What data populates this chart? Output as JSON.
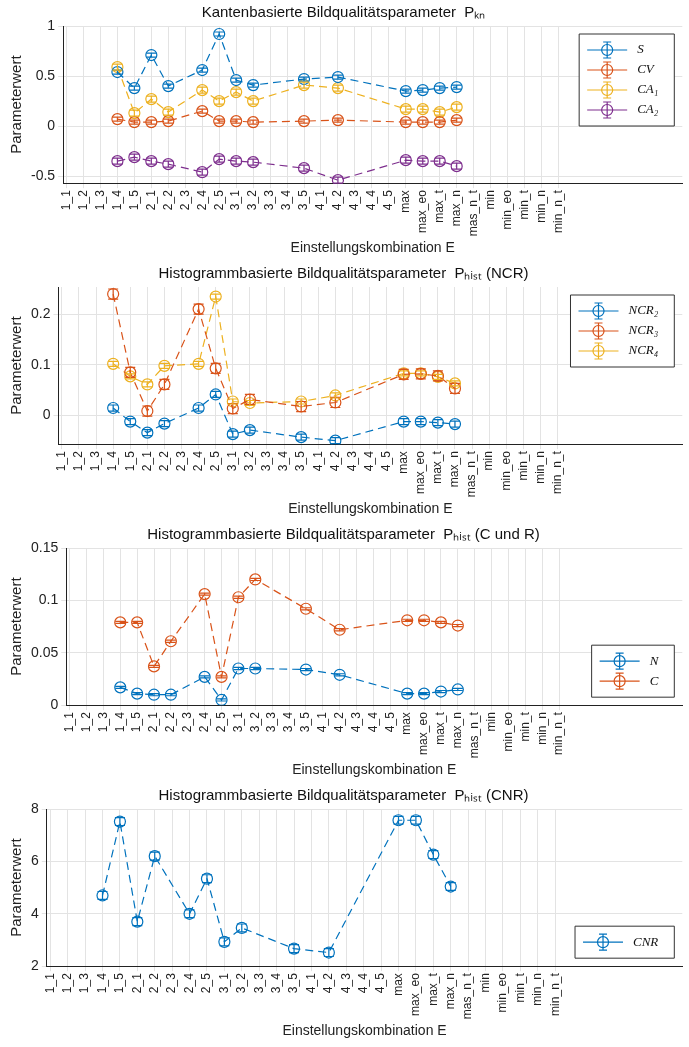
{
  "chart_data": [
    {
      "type": "line",
      "title": "Kantenbasierte Bildqualitätsparameter  Pₖₙ",
      "xlabel": "Einstellungskombination E",
      "ylabel": "Parameterwert",
      "categories": [
        "1_1",
        "1_2",
        "1_3",
        "1_4",
        "1_5",
        "2_1",
        "2_2",
        "2_3",
        "2_4",
        "2_5",
        "3_1",
        "3_2",
        "3_3",
        "3_4",
        "3_5",
        "4_1",
        "4_2",
        "4_3",
        "4_4",
        "4_5",
        "max",
        "max_eo",
        "max_t",
        "max_n",
        "mas_n_t",
        "min",
        "min_eo",
        "min_t",
        "min_n",
        "min_n_t"
      ],
      "series": [
        {
          "name": "S",
          "color": "#0072bd",
          "values": [
            null,
            null,
            null,
            0.54,
            0.38,
            0.71,
            0.4,
            null,
            0.56,
            0.92,
            0.46,
            0.41,
            null,
            null,
            0.47,
            null,
            0.49,
            null,
            null,
            null,
            0.35,
            0.36,
            0.38,
            0.39,
            null,
            null,
            null,
            null,
            null,
            null
          ],
          "errors": [
            null,
            null,
            null,
            0.02,
            0.02,
            0.02,
            0.02,
            null,
            0.02,
            0.02,
            0.02,
            0.02,
            null,
            null,
            0.02,
            null,
            0.02,
            null,
            null,
            null,
            0.02,
            0.02,
            0.02,
            0.02,
            null,
            null,
            null,
            null,
            null,
            null
          ]
        },
        {
          "name": "CV",
          "color": "#d95319",
          "values": [
            null,
            null,
            null,
            0.07,
            0.04,
            0.04,
            0.05,
            null,
            0.15,
            0.05,
            0.05,
            0.04,
            null,
            null,
            0.05,
            null,
            0.06,
            null,
            null,
            null,
            0.04,
            0.04,
            0.04,
            0.06,
            null,
            null,
            null,
            null,
            null,
            null
          ],
          "errors": [
            null,
            null,
            null,
            0.02,
            0.02,
            0.02,
            0.02,
            null,
            0.02,
            0.02,
            0.02,
            0.02,
            null,
            null,
            0.02,
            null,
            0.02,
            null,
            null,
            null,
            0.02,
            0.02,
            0.02,
            0.02,
            null,
            null,
            null,
            null,
            null,
            null
          ]
        },
        {
          "name": "CA₁",
          "color": "#edb120",
          "values": [
            null,
            null,
            null,
            0.59,
            0.13,
            0.27,
            0.14,
            null,
            0.36,
            0.25,
            0.34,
            0.25,
            null,
            null,
            0.41,
            null,
            0.38,
            null,
            null,
            null,
            0.17,
            0.17,
            0.14,
            0.19,
            null,
            null,
            null,
            null,
            null,
            null
          ],
          "errors": [
            null,
            null,
            null,
            0.03,
            0.03,
            0.03,
            0.03,
            null,
            0.03,
            0.03,
            0.03,
            0.03,
            null,
            null,
            0.03,
            null,
            0.03,
            null,
            null,
            null,
            0.03,
            0.03,
            0.03,
            0.03,
            null,
            null,
            null,
            null,
            null,
            null
          ]
        },
        {
          "name": "CA₂",
          "color": "#7e2f8e",
          "values": [
            null,
            null,
            null,
            -0.35,
            -0.31,
            -0.35,
            -0.38,
            null,
            -0.46,
            -0.33,
            -0.35,
            -0.36,
            null,
            null,
            -0.42,
            null,
            -0.54,
            null,
            null,
            null,
            -0.34,
            -0.35,
            -0.35,
            -0.4,
            null,
            null,
            null,
            null,
            null,
            null
          ],
          "errors": [
            null,
            null,
            null,
            0.03,
            0.03,
            0.03,
            0.03,
            null,
            0.03,
            0.03,
            0.03,
            0.03,
            null,
            null,
            0.03,
            null,
            0.03,
            null,
            null,
            null,
            0.03,
            0.03,
            0.03,
            0.03,
            null,
            null,
            null,
            null,
            null,
            null
          ]
        }
      ],
      "ylim": [
        -0.57,
        1
      ],
      "yticks": [
        -0.5,
        0,
        0.5,
        1
      ],
      "grid": true,
      "legend": "top right",
      "marker": "circle",
      "line_style": "dashed"
    },
    {
      "type": "line",
      "title": "Histogrammbasierte Bildqualitätsparameter  Pₕᵢₛₜ (NCR)",
      "xlabel": "Einstellungskombination E",
      "ylabel": "Parameterwert",
      "categories": [
        "1_1",
        "1_2",
        "1_3",
        "1_4",
        "1_5",
        "2_1",
        "2_2",
        "2_3",
        "2_4",
        "2_5",
        "3_1",
        "3_2",
        "3_3",
        "3_4",
        "3_5",
        "4_1",
        "4_2",
        "4_3",
        "4_4",
        "4_5",
        "max",
        "max_eo",
        "max_t",
        "max_n",
        "mas_n_t",
        "min",
        "min_eo",
        "min_t",
        "min_n",
        "min_n_t"
      ],
      "series": [
        {
          "name": "NCR₂",
          "color": "#0072bd",
          "values": [
            null,
            null,
            null,
            0.014,
            -0.013,
            -0.035,
            -0.017,
            null,
            0.014,
            0.041,
            -0.038,
            -0.03,
            null,
            null,
            -0.044,
            null,
            -0.051,
            null,
            null,
            null,
            -0.013,
            -0.013,
            -0.015,
            -0.018,
            null,
            null,
            null,
            null,
            null,
            null
          ],
          "errors": [
            null,
            null,
            null,
            0.006,
            0.006,
            0.006,
            0.006,
            null,
            0.006,
            0.006,
            0.006,
            0.006,
            null,
            null,
            0.006,
            null,
            0.006,
            null,
            null,
            null,
            0.006,
            0.006,
            0.006,
            0.006,
            null,
            null,
            null,
            null,
            null,
            null
          ]
        },
        {
          "name": "NCR₃",
          "color": "#d95319",
          "values": [
            null,
            null,
            null,
            0.241,
            0.085,
            0.008,
            0.061,
            null,
            0.211,
            0.093,
            0.013,
            0.031,
            null,
            null,
            0.017,
            null,
            0.025,
            null,
            null,
            null,
            0.081,
            0.082,
            0.078,
            0.053,
            null,
            null,
            null,
            null,
            null,
            null
          ],
          "errors": [
            null,
            null,
            null,
            0.01,
            0.01,
            0.01,
            0.01,
            null,
            0.01,
            0.01,
            0.01,
            0.01,
            null,
            null,
            0.01,
            null,
            0.01,
            null,
            null,
            null,
            0.01,
            0.01,
            0.01,
            0.01,
            null,
            null,
            null,
            null,
            null,
            null
          ]
        },
        {
          "name": "NCR₄",
          "color": "#edb120",
          "values": [
            null,
            null,
            null,
            0.102,
            0.077,
            0.061,
            0.098,
            null,
            0.102,
            0.236,
            0.027,
            0.024,
            null,
            null,
            0.027,
            null,
            0.039,
            null,
            null,
            null,
            0.083,
            0.083,
            0.076,
            0.063,
            null,
            null,
            null,
            null,
            null,
            null
          ],
          "errors": [
            null,
            null,
            null,
            0.005,
            0.005,
            0.005,
            0.005,
            null,
            0.005,
            0.005,
            0.005,
            0.005,
            null,
            null,
            0.005,
            null,
            0.005,
            null,
            null,
            null,
            0.005,
            0.005,
            0.005,
            0.005,
            null,
            null,
            null,
            null,
            null,
            null
          ]
        }
      ],
      "ylim": [
        -0.058,
        0.255
      ],
      "yticks": [
        0,
        0.1,
        0.2
      ],
      "grid": true,
      "legend": "top right",
      "marker": "circle",
      "line_style": "dashed"
    },
    {
      "type": "line",
      "title": "Histogrammbasierte Bildqualitätsparameter  Pₕᵢₛₜ (C und R)",
      "xlabel": "Einstellungskombination E",
      "ylabel": "Parameterwert",
      "categories": [
        "1_1",
        "1_2",
        "1_3",
        "1_4",
        "1_5",
        "2_1",
        "2_2",
        "2_3",
        "2_4",
        "2_5",
        "3_1",
        "3_2",
        "3_3",
        "3_4",
        "3_5",
        "4_1",
        "4_2",
        "4_3",
        "4_4",
        "4_5",
        "max",
        "max_eo",
        "max_t",
        "max_n",
        "mas_n_t",
        "min",
        "min_eo",
        "min_t",
        "min_n",
        "min_n_t"
      ],
      "series": [
        {
          "name": "N",
          "color": "#0072bd",
          "values": [
            null,
            null,
            null,
            0.017,
            0.011,
            0.01,
            0.01,
            null,
            0.027,
            0.005,
            0.035,
            0.035,
            null,
            null,
            0.034,
            null,
            0.029,
            null,
            null,
            null,
            0.011,
            0.011,
            0.013,
            0.015,
            null,
            null,
            null,
            null,
            null,
            null
          ],
          "errors": [
            null,
            null,
            null,
            0.001,
            0.001,
            0.001,
            0.001,
            null,
            0.001,
            0.001,
            0.001,
            0.001,
            null,
            null,
            0.001,
            null,
            0.001,
            null,
            null,
            null,
            0.001,
            0.001,
            0.001,
            0.001,
            null,
            null,
            null,
            null,
            null,
            null
          ]
        },
        {
          "name": "C",
          "color": "#d95319",
          "values": [
            null,
            null,
            null,
            0.079,
            0.079,
            0.037,
            0.061,
            null,
            0.106,
            0.027,
            0.103,
            0.12,
            null,
            null,
            0.092,
            null,
            0.072,
            null,
            null,
            null,
            0.081,
            0.081,
            0.079,
            0.076,
            null,
            null,
            null,
            null,
            null,
            null
          ],
          "errors": [
            null,
            null,
            null,
            0.001,
            0.001,
            0.001,
            0.001,
            null,
            0.001,
            0.001,
            0.001,
            0.001,
            null,
            null,
            0.001,
            null,
            0.001,
            null,
            null,
            null,
            0.001,
            0.001,
            0.001,
            0.001,
            null,
            null,
            null,
            null,
            null,
            null
          ]
        }
      ],
      "ylim": [
        0,
        0.15
      ],
      "yticks": [
        0,
        0.05,
        0.1,
        0.15
      ],
      "grid": true,
      "legend": "bottom right",
      "marker": "circle",
      "line_style": "dashed"
    },
    {
      "type": "line",
      "title": "Histogrammbasierte Bildqualitätsparameter  Pₕᵢₛₜ (CNR)",
      "xlabel": "Einstellungskombination E",
      "ylabel": "Parameterwert",
      "categories": [
        "1_1",
        "1_2",
        "1_3",
        "1_4",
        "1_5",
        "2_1",
        "2_2",
        "2_3",
        "2_4",
        "2_5",
        "3_1",
        "3_2",
        "3_3",
        "3_4",
        "3_5",
        "4_1",
        "4_2",
        "4_3",
        "4_4",
        "4_5",
        "max",
        "max_eo",
        "max_t",
        "max_n",
        "mas_n_t",
        "min",
        "min_eo",
        "min_t",
        "min_n",
        "min_n_t"
      ],
      "series": [
        {
          "name": "CNR",
          "color": "#0072bd",
          "values": [
            null,
            null,
            null,
            4.7,
            7.52,
            3.7,
            6.2,
            null,
            4.0,
            5.34,
            2.93,
            3.46,
            null,
            null,
            2.67,
            null,
            2.52,
            null,
            null,
            null,
            7.57,
            7.57,
            6.26,
            5.04,
            null,
            null,
            null,
            null,
            null,
            null
          ],
          "errors": [
            null,
            null,
            null,
            0.15,
            0.15,
            0.15,
            0.15,
            null,
            0.15,
            0.15,
            0.15,
            0.15,
            null,
            null,
            0.15,
            null,
            0.15,
            null,
            null,
            null,
            0.15,
            0.15,
            0.15,
            0.15,
            null,
            null,
            null,
            null,
            null,
            null
          ]
        }
      ],
      "ylim": [
        2,
        8
      ],
      "yticks": [
        2,
        4,
        6,
        8
      ],
      "grid": true,
      "legend": "bottom right",
      "marker": "circle",
      "line_style": "dashed"
    }
  ]
}
